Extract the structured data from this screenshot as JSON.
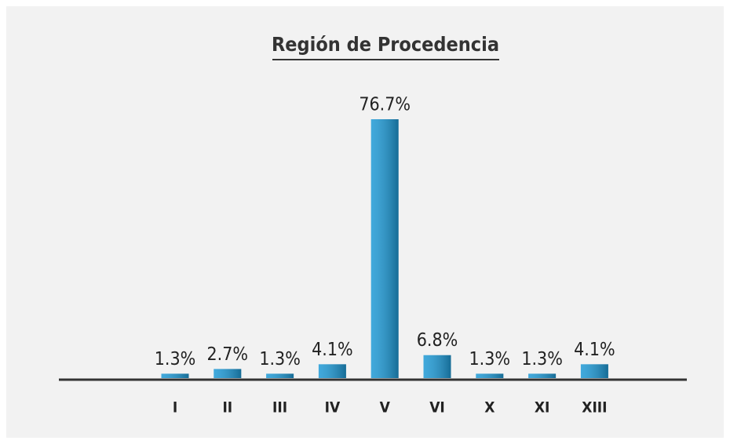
{
  "chart_data": {
    "type": "bar",
    "title": "Región de Procedencia",
    "categories": [
      "I",
      "II",
      "III",
      "IV",
      "V",
      "VI",
      "X",
      "XI",
      "XIII"
    ],
    "values": [
      1.3,
      2.7,
      1.3,
      4.1,
      76.7,
      6.8,
      1.3,
      1.3,
      4.1
    ],
    "value_labels": [
      "1.3%",
      "2.7%",
      "1.3%",
      "4.1%",
      "76.7%",
      "6.8%",
      "1.3%",
      "1.3%",
      "4.1%"
    ],
    "color": "#1f9ad6",
    "grid": false
  }
}
